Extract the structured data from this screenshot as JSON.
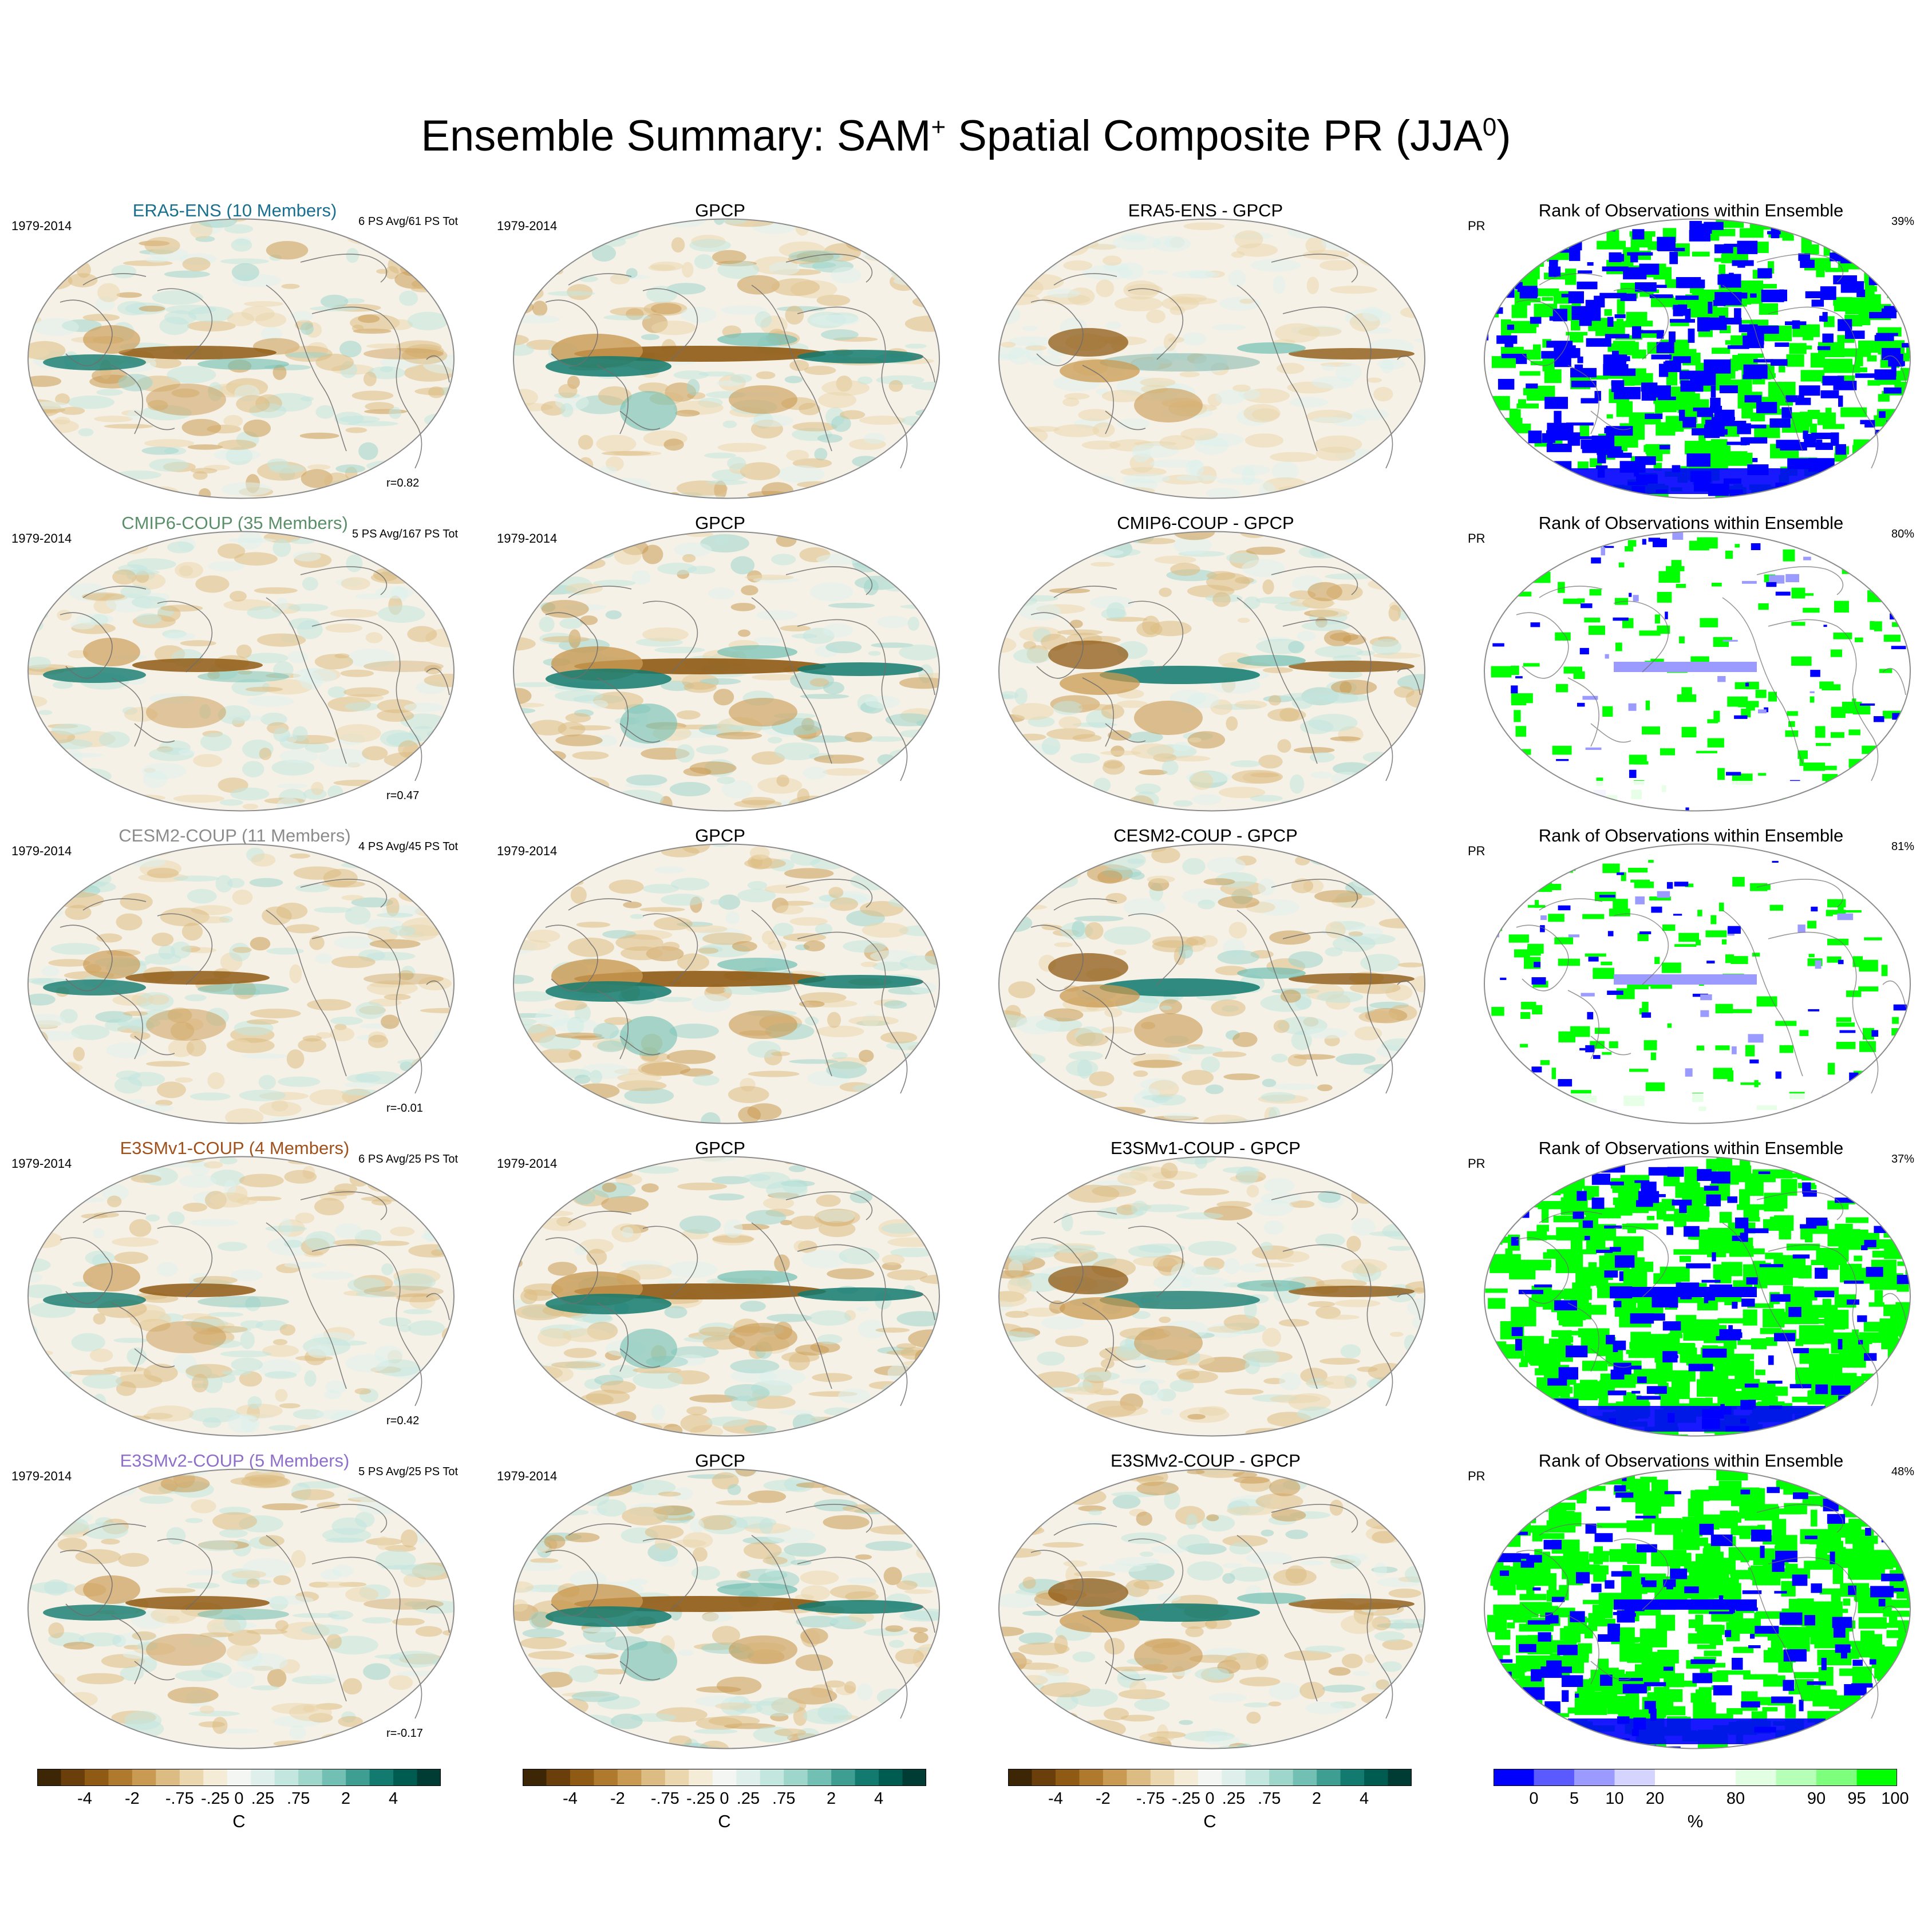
{
  "title": {
    "prefix": "Ensemble Summary: SAM",
    "sup1": "+",
    "middle": " Spatial Composite PR (JJA",
    "sup2": "0",
    "suffix": ")"
  },
  "rows": [
    {
      "ensemble_label": "ERA5-ENS (10 Members)",
      "label_color": "#1a6f8f",
      "period": "1979-2014",
      "stats": "6 PS Avg/61 PS Tot",
      "r": "r=0.82",
      "obs_label": "GPCP",
      "obs_period": "1979-2014",
      "diff_label": "ERA5-ENS - GPCP",
      "rank_label": "Rank of Observations within Ensemble",
      "rank_var": "PR",
      "rank_pct": "39%",
      "rank_style": "mixed"
    },
    {
      "ensemble_label": "CMIP6-COUP (35 Members)",
      "label_color": "#5b8f6a",
      "period": "1979-2014",
      "stats": "5 PS Avg/167 PS Tot",
      "r": "r=0.47",
      "obs_label": "GPCP",
      "obs_period": "1979-2014",
      "diff_label": "CMIP6-COUP - GPCP",
      "rank_label": "Rank of Observations within Ensemble",
      "rank_var": "PR",
      "rank_pct": "80%",
      "rank_style": "sparse"
    },
    {
      "ensemble_label": "CESM2-COUP (11 Members)",
      "label_color": "#8c8c8c",
      "period": "1979-2014",
      "stats": "4 PS Avg/45 PS Tot",
      "r": "r=-0.01",
      "obs_label": "GPCP",
      "obs_period": "1979-2014",
      "diff_label": "CESM2-COUP - GPCP",
      "rank_label": "Rank of Observations within Ensemble",
      "rank_var": "PR",
      "rank_pct": "81%",
      "rank_style": "sparse"
    },
    {
      "ensemble_label": "E3SMv1-COUP (4 Members)",
      "label_color": "#a0521d",
      "period": "1979-2014",
      "stats": "6 PS Avg/25 PS Tot",
      "r": "r=0.42",
      "obs_label": "GPCP",
      "obs_period": "1979-2014",
      "diff_label": "E3SMv1-COUP - GPCP",
      "rank_label": "Rank of Observations within Ensemble",
      "rank_var": "PR",
      "rank_pct": "37%",
      "rank_style": "dense"
    },
    {
      "ensemble_label": "E3SMv2-COUP (5 Members)",
      "label_color": "#8e6fc9",
      "period": "1979-2014",
      "stats": "5 PS Avg/25 PS Tot",
      "r": "r=-0.17",
      "obs_label": "GPCP",
      "obs_period": "1979-2014",
      "diff_label": "E3SMv2-COUP - GPCP",
      "rank_label": "Rank of Observations within Ensemble",
      "rank_var": "PR",
      "rank_pct": "48%",
      "rank_style": "dense"
    }
  ],
  "colorbar_anomaly": {
    "colors": [
      "#3d2606",
      "#6b3f0c",
      "#8f5a14",
      "#b07a2e",
      "#c99a52",
      "#dcbc82",
      "#ebd7ad",
      "#f5ecd8",
      "#f3f6f2",
      "#dff0ec",
      "#c3e6df",
      "#9fd6cc",
      "#72bfb3",
      "#3f9e92",
      "#137a6f",
      "#005c50",
      "#003c33"
    ],
    "ticks": [
      "-4",
      "-2",
      "-.75",
      "-.25",
      "0",
      ".25",
      ".75",
      "2",
      "4"
    ],
    "unit": "C"
  },
  "colorbar_rank": {
    "colors": [
      "#0000ff",
      "#5a5aff",
      "#9b9bff",
      "#d4d4ff",
      "#ffffff",
      "#ffffff",
      "#e3ffe3",
      "#b6ffb6",
      "#7dff7d",
      "#00ff00"
    ],
    "ticks": [
      "0",
      "5",
      "10",
      "20",
      "80",
      "90",
      "95",
      "100"
    ],
    "unit": "%"
  }
}
